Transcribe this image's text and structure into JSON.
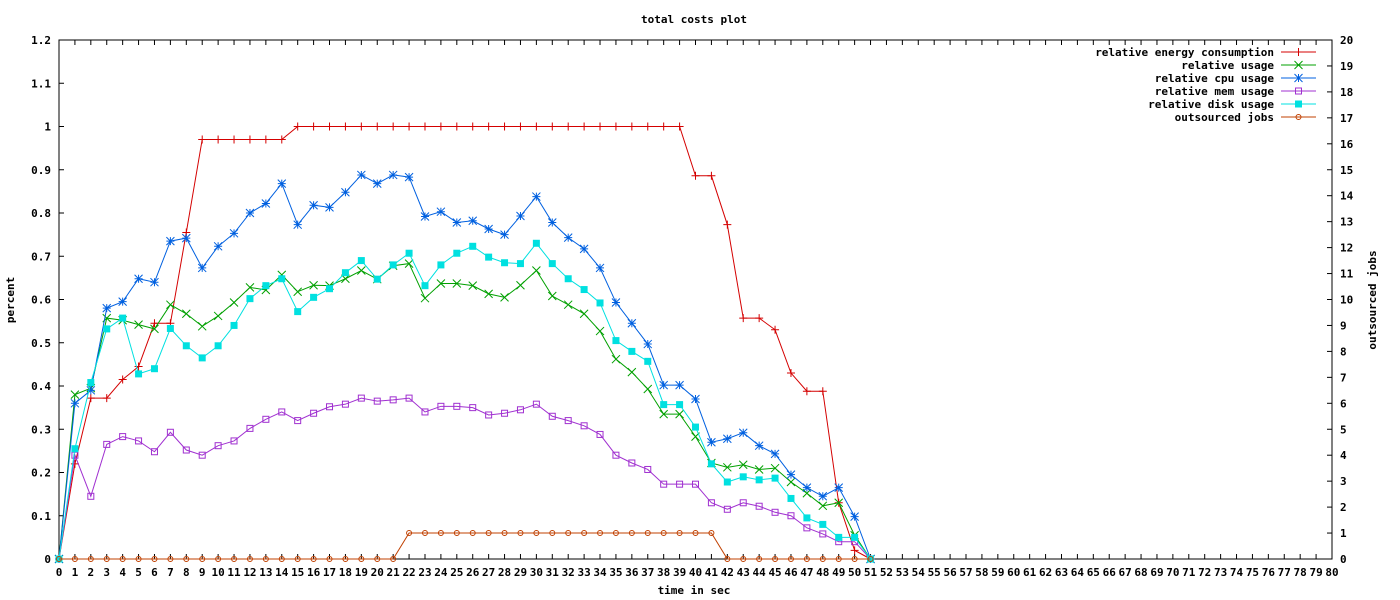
{
  "chart_data": {
    "type": "line",
    "title": "total costs plot",
    "xlabel": "time in sec",
    "ylabel": "percent",
    "y2label": "outsourced jobs",
    "xlim": [
      0,
      80
    ],
    "ylim": [
      0,
      1.2
    ],
    "y2lim": [
      0,
      20
    ],
    "xticks": [
      0,
      1,
      2,
      3,
      4,
      5,
      6,
      7,
      8,
      9,
      10,
      11,
      12,
      13,
      14,
      15,
      16,
      17,
      18,
      19,
      20,
      21,
      22,
      23,
      24,
      25,
      26,
      27,
      28,
      29,
      30,
      31,
      32,
      33,
      34,
      35,
      36,
      37,
      38,
      39,
      40,
      41,
      42,
      43,
      44,
      45,
      46,
      47,
      48,
      49,
      50,
      51,
      52,
      53,
      54,
      55,
      56,
      57,
      58,
      59,
      60,
      61,
      62,
      63,
      64,
      65,
      66,
      67,
      68,
      69,
      70,
      71,
      72,
      73,
      74,
      75,
      76,
      77,
      78,
      79,
      80
    ],
    "yticks": [
      "0",
      "0.1",
      "0.2",
      "0.3",
      "0.4",
      "0.5",
      "0.6",
      "0.7",
      "0.8",
      "0.9",
      "1",
      "1.1",
      "1.2"
    ],
    "y2ticks": [
      "0",
      "1",
      "2",
      "3",
      "4",
      "5",
      "6",
      "7",
      "8",
      "9",
      "10",
      "11",
      "12",
      "13",
      "14",
      "15",
      "16",
      "17",
      "18",
      "19",
      "20"
    ],
    "legend_position": "top-right",
    "grid": false,
    "series": [
      {
        "name": "relative energy consumption",
        "color": "#d40000",
        "marker": "plus",
        "axis": "y",
        "x": [
          0,
          1,
          2,
          3,
          4,
          5,
          6,
          7,
          8,
          9,
          10,
          11,
          12,
          13,
          14,
          15,
          16,
          17,
          18,
          19,
          20,
          21,
          22,
          23,
          24,
          25,
          26,
          27,
          28,
          29,
          30,
          31,
          32,
          33,
          34,
          35,
          36,
          37,
          38,
          39,
          40,
          41,
          42,
          43,
          44,
          45,
          46,
          47,
          48,
          49,
          50,
          51
        ],
        "y": [
          0,
          0.22,
          0.372,
          0.372,
          0.415,
          0.445,
          0.545,
          0.545,
          0.755,
          0.97,
          0.97,
          0.97,
          0.97,
          0.97,
          0.97,
          1,
          1,
          1,
          1,
          1,
          1,
          1,
          1,
          1,
          1,
          1,
          1,
          1,
          1,
          1,
          1,
          1,
          1,
          1,
          1,
          1,
          1,
          1,
          1,
          1,
          0.886,
          0.886,
          0.773,
          0.557,
          0.557,
          0.53,
          0.43,
          0.388,
          0.388,
          0.13,
          0.02,
          0
        ]
      },
      {
        "name": "relative usage",
        "color": "#00a000",
        "marker": "x",
        "axis": "y",
        "x": [
          0,
          1,
          2,
          3,
          4,
          5,
          6,
          7,
          8,
          9,
          10,
          11,
          12,
          13,
          14,
          15,
          16,
          17,
          18,
          19,
          20,
          21,
          22,
          23,
          24,
          25,
          26,
          27,
          28,
          29,
          30,
          31,
          32,
          33,
          34,
          35,
          36,
          37,
          38,
          39,
          40,
          41,
          42,
          43,
          44,
          45,
          46,
          47,
          48,
          49,
          50,
          51
        ],
        "y": [
          0,
          0.38,
          0.395,
          0.557,
          0.552,
          0.542,
          0.532,
          0.588,
          0.567,
          0.538,
          0.562,
          0.593,
          0.628,
          0.622,
          0.657,
          0.618,
          0.633,
          0.632,
          0.648,
          0.667,
          0.647,
          0.678,
          0.683,
          0.603,
          0.637,
          0.637,
          0.632,
          0.613,
          0.605,
          0.633,
          0.667,
          0.608,
          0.588,
          0.567,
          0.527,
          0.462,
          0.432,
          0.393,
          0.335,
          0.335,
          0.283,
          0.222,
          0.212,
          0.218,
          0.207,
          0.21,
          0.178,
          0.152,
          0.123,
          0.13,
          0.055,
          0
        ]
      },
      {
        "name": "relative cpu usage",
        "color": "#0060e0",
        "marker": "star",
        "axis": "y",
        "x": [
          0,
          1,
          2,
          3,
          4,
          5,
          6,
          7,
          8,
          9,
          10,
          11,
          12,
          13,
          14,
          15,
          16,
          17,
          18,
          19,
          20,
          21,
          22,
          23,
          24,
          25,
          26,
          27,
          28,
          29,
          30,
          31,
          32,
          33,
          34,
          35,
          36,
          37,
          38,
          39,
          40,
          41,
          42,
          43,
          44,
          45,
          46,
          47,
          48,
          49,
          50,
          51
        ],
        "y": [
          0,
          0.36,
          0.39,
          0.58,
          0.595,
          0.648,
          0.64,
          0.735,
          0.742,
          0.673,
          0.723,
          0.753,
          0.8,
          0.822,
          0.868,
          0.773,
          0.818,
          0.813,
          0.848,
          0.888,
          0.868,
          0.888,
          0.883,
          0.792,
          0.803,
          0.778,
          0.782,
          0.763,
          0.75,
          0.793,
          0.838,
          0.778,
          0.743,
          0.717,
          0.673,
          0.593,
          0.545,
          0.497,
          0.402,
          0.402,
          0.37,
          0.27,
          0.278,
          0.292,
          0.262,
          0.243,
          0.195,
          0.165,
          0.145,
          0.165,
          0.098,
          0
        ]
      },
      {
        "name": "relative mem usage",
        "color": "#a030d0",
        "marker": "square",
        "axis": "y",
        "x": [
          0,
          1,
          2,
          3,
          4,
          5,
          6,
          7,
          8,
          9,
          10,
          11,
          12,
          13,
          14,
          15,
          16,
          17,
          18,
          19,
          20,
          21,
          22,
          23,
          24,
          25,
          26,
          27,
          28,
          29,
          30,
          31,
          32,
          33,
          34,
          35,
          36,
          37,
          38,
          39,
          40,
          41,
          42,
          43,
          44,
          45,
          46,
          47,
          48,
          49,
          50,
          51
        ],
        "y": [
          0,
          0.24,
          0.145,
          0.265,
          0.283,
          0.273,
          0.248,
          0.293,
          0.252,
          0.24,
          0.262,
          0.273,
          0.302,
          0.323,
          0.34,
          0.32,
          0.337,
          0.352,
          0.358,
          0.372,
          0.365,
          0.368,
          0.372,
          0.34,
          0.353,
          0.353,
          0.35,
          0.333,
          0.337,
          0.345,
          0.358,
          0.33,
          0.32,
          0.308,
          0.288,
          0.24,
          0.222,
          0.207,
          0.173,
          0.173,
          0.173,
          0.13,
          0.115,
          0.13,
          0.122,
          0.108,
          0.1,
          0.072,
          0.058,
          0.04,
          0.04,
          0
        ]
      },
      {
        "name": "relative disk usage",
        "color": "#00e0e0",
        "marker": "filled-square",
        "axis": "y",
        "x": [
          0,
          1,
          2,
          3,
          4,
          5,
          6,
          7,
          8,
          9,
          10,
          11,
          12,
          13,
          14,
          15,
          16,
          17,
          18,
          19,
          20,
          21,
          22,
          23,
          24,
          25,
          26,
          27,
          28,
          29,
          30,
          31,
          32,
          33,
          34,
          35,
          36,
          37,
          38,
          39,
          40,
          41,
          42,
          43,
          44,
          45,
          46,
          47,
          48,
          49,
          50,
          51
        ],
        "y": [
          0,
          0.255,
          0.408,
          0.532,
          0.557,
          0.428,
          0.44,
          0.533,
          0.493,
          0.465,
          0.493,
          0.54,
          0.602,
          0.632,
          0.648,
          0.572,
          0.605,
          0.625,
          0.662,
          0.69,
          0.647,
          0.68,
          0.707,
          0.632,
          0.68,
          0.707,
          0.723,
          0.698,
          0.685,
          0.683,
          0.73,
          0.683,
          0.648,
          0.623,
          0.592,
          0.505,
          0.48,
          0.457,
          0.357,
          0.357,
          0.305,
          0.22,
          0.178,
          0.19,
          0.183,
          0.187,
          0.14,
          0.095,
          0.08,
          0.05,
          0.05,
          0
        ]
      },
      {
        "name": "outsourced jobs",
        "color": "#c04000",
        "marker": "circle",
        "axis": "y2",
        "x": [
          0,
          1,
          2,
          3,
          4,
          5,
          6,
          7,
          8,
          9,
          10,
          11,
          12,
          13,
          14,
          15,
          16,
          17,
          18,
          19,
          20,
          21,
          22,
          23,
          24,
          25,
          26,
          27,
          28,
          29,
          30,
          31,
          32,
          33,
          34,
          35,
          36,
          37,
          38,
          39,
          40,
          41,
          42,
          43,
          44,
          45,
          46,
          47,
          48,
          49,
          50,
          51
        ],
        "y": [
          0,
          0,
          0,
          0,
          0,
          0,
          0,
          0,
          0,
          0,
          0,
          0,
          0,
          0,
          0,
          0,
          0,
          0,
          0,
          0,
          0,
          0,
          1,
          1,
          1,
          1,
          1,
          1,
          1,
          1,
          1,
          1,
          1,
          1,
          1,
          1,
          1,
          1,
          1,
          1,
          1,
          1,
          0,
          0,
          0,
          0,
          0,
          0,
          0,
          0,
          0,
          0
        ]
      }
    ]
  }
}
